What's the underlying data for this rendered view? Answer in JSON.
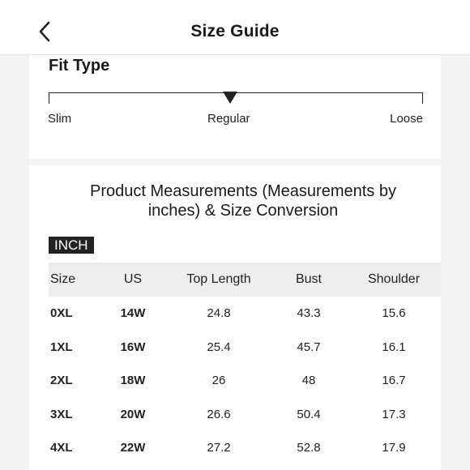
{
  "header": {
    "title": "Size Guide",
    "back_icon": "chevron-left-icon"
  },
  "fit_type": {
    "title": "Fit Type",
    "labels": {
      "slim": "Slim",
      "regular": "Regular",
      "loose": "Loose"
    },
    "selected": "Regular",
    "marker_icon": "triangle-down-icon"
  },
  "measurements": {
    "title_line1": "Product Measurements (Measurements by",
    "title_line2": "inches) & Size Conversion",
    "unit": "INCH",
    "columns": [
      "Size",
      "US",
      "Top Length",
      "Bust",
      "Shoulder"
    ],
    "rows": [
      [
        "0XL",
        "14W",
        "24.8",
        "43.3",
        "15.6"
      ],
      [
        "1XL",
        "16W",
        "25.4",
        "45.7",
        "16.1"
      ],
      [
        "2XL",
        "18W",
        "26",
        "48",
        "16.7"
      ],
      [
        "3XL",
        "20W",
        "26.6",
        "50.4",
        "17.3"
      ],
      [
        "4XL",
        "22W",
        "27.2",
        "52.8",
        "17.9"
      ]
    ]
  },
  "colors": {
    "background": "#f3f3f3",
    "card": "#ffffff",
    "text": "#1a1a1a",
    "badge_bg": "#222222",
    "table_header_bg": "#eeeeee"
  }
}
